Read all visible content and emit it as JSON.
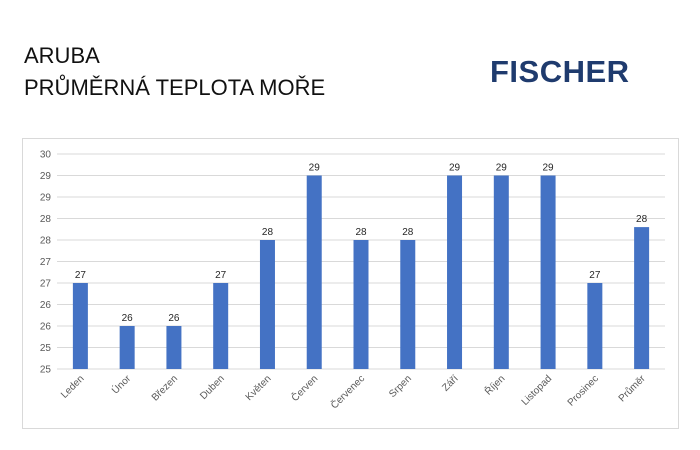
{
  "header": {
    "title_line1": "ARUBA",
    "title_line2": "PRŮMĚRNÁ TEPLOTA MOŘE"
  },
  "logo": {
    "text": "FISCHER",
    "color": "#1f3b6e"
  },
  "chart_data": {
    "type": "bar",
    "categories": [
      "Leden",
      "Únor",
      "Březen",
      "Duben",
      "Květen",
      "Červen",
      "Červenec",
      "Srpen",
      "Září",
      "Říjen",
      "Listopad",
      "Prosinec",
      "Průměr"
    ],
    "values": [
      27,
      26,
      26,
      27,
      28,
      29,
      28,
      28,
      29,
      29,
      29,
      27,
      28
    ],
    "bar_values": [
      27,
      26,
      26,
      27,
      28,
      29.5,
      28,
      28,
      29.5,
      29.5,
      29.5,
      27,
      28.3
    ],
    "ytick_labels": [
      "25",
      "25",
      "26",
      "26",
      "27",
      "27",
      "28",
      "28",
      "29",
      "29",
      "30"
    ],
    "ylim": [
      25,
      30
    ],
    "grid": true,
    "bar_color": "#4472c4",
    "xlabel": "",
    "ylabel": ""
  }
}
